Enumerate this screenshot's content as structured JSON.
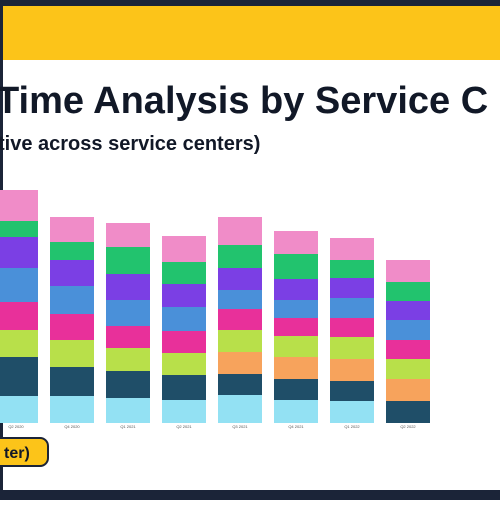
{
  "chart_data": {
    "type": "stacked-bar",
    "title": "Time Analysis by Service C",
    "subtitle": "tive across service centers)",
    "legend_fragment": "ter)",
    "categories": [
      "Q2 2020",
      "Q4 2020",
      "Q1 2021",
      "Q2 2021",
      "Q3 2021",
      "Q4 2021",
      "Q1 2022",
      "Q2 2022"
    ],
    "ylim": [
      0,
      240
    ],
    "series": [
      {
        "color": "#93e1f3",
        "values": [
          27,
          27,
          25,
          23,
          28,
          23,
          22,
          0
        ]
      },
      {
        "color": "#1f4e68",
        "values": [
          39,
          29,
          27,
          25,
          21,
          21,
          20,
          22
        ]
      },
      {
        "color": "#f7a35c",
        "values": [
          0,
          0,
          0,
          0,
          22,
          22,
          22,
          22
        ]
      },
      {
        "color": "#b8e04a",
        "values": [
          27,
          27,
          23,
          22,
          22,
          21,
          22,
          20
        ]
      },
      {
        "color": "#e8309a",
        "values": [
          28,
          26,
          22,
          22,
          21,
          18,
          19,
          19
        ]
      },
      {
        "color": "#4a90d9",
        "values": [
          34,
          28,
          26,
          24,
          19,
          18,
          20,
          20
        ]
      },
      {
        "color": "#7b3fe4",
        "values": [
          31,
          26,
          26,
          23,
          22,
          21,
          20,
          19
        ]
      },
      {
        "color": "#22c36e",
        "values": [
          16,
          18,
          27,
          22,
          23,
          25,
          18,
          19
        ]
      },
      {
        "color": "#f08cc8",
        "values": [
          31,
          25,
          24,
          26,
          28,
          23,
          22,
          22
        ]
      }
    ]
  }
}
